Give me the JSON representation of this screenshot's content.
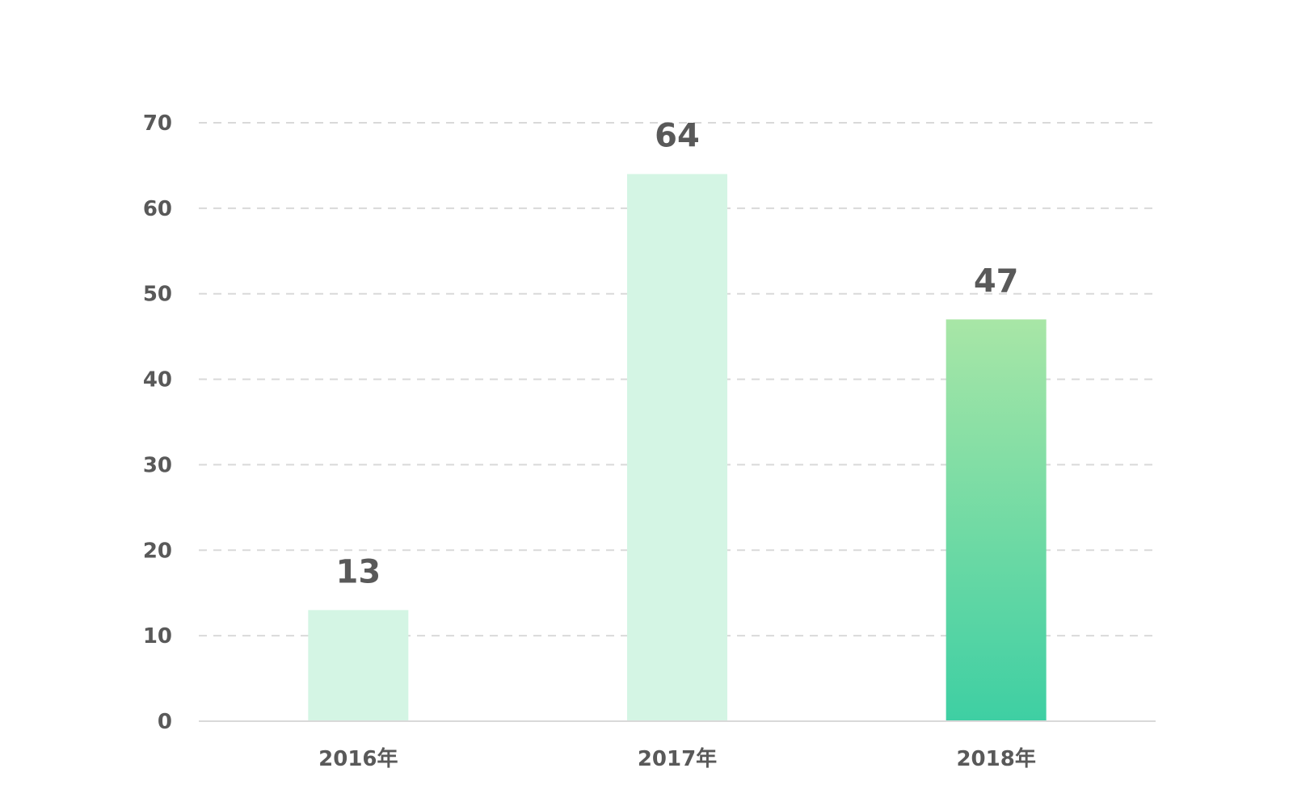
{
  "chart_data": {
    "type": "bar",
    "categories": [
      "2016年",
      "2017年",
      "2018年"
    ],
    "values": [
      13,
      64,
      47
    ],
    "data_labels": [
      "13",
      "64",
      "47"
    ],
    "y_ticks": [
      "0",
      "10",
      "20",
      "30",
      "40",
      "50",
      "60",
      "70"
    ],
    "ylim": [
      0,
      70
    ],
    "grid": true,
    "legend": "none",
    "colors": {
      "bar_light": "#d4f5e4",
      "bar_highlight_top": "#a8e6a6",
      "bar_highlight_bottom": "#3ecfa3",
      "text": "#595959",
      "grid": "#d9d9d9"
    }
  }
}
